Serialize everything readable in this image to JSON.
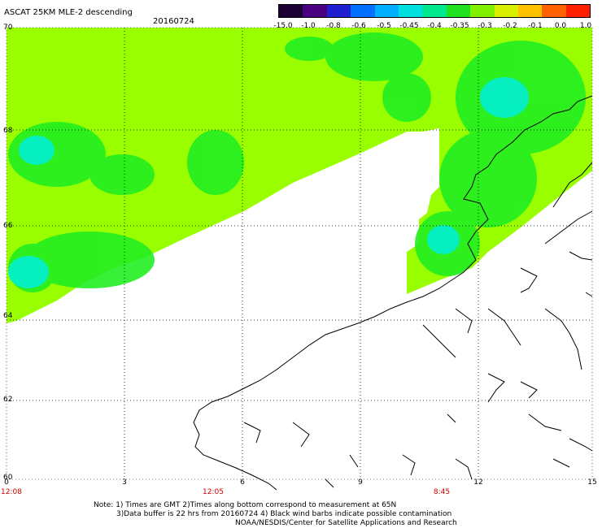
{
  "header": {
    "title": "ASCAT 25KM MLE-2 descending",
    "date": "20160724"
  },
  "colorbar": {
    "labels": [
      "-15.0",
      "-1.0",
      "-0.8",
      "-0.6",
      "-0.5",
      "-0.45",
      "-0.4",
      "-0.35",
      "-0.3",
      "-0.2",
      "-0.1",
      "0.0",
      "1.0"
    ],
    "colors": [
      "#1a0033",
      "#4b0082",
      "#2020d0",
      "#0070ff",
      "#00b0ff",
      "#00e0e0",
      "#00e890",
      "#20e020",
      "#80f000",
      "#d8f000",
      "#ffc000",
      "#ff6000",
      "#ff2000"
    ]
  },
  "axes": {
    "y_ticks": [
      "70",
      "68",
      "66",
      "64",
      "62",
      "60"
    ],
    "x_ticks": [
      "0",
      "3",
      "6",
      "9",
      "12",
      "15"
    ],
    "times": [
      "12:08",
      "12:05",
      "8:45"
    ]
  },
  "notes": [
    "Note: 1) Times are GMT 2)Times along bottom correspond to measurement at 65N",
    "3)Data buffer is 22 hrs from 20160724 4) Black wind barbs indicate possible contamination",
    "NOAA/NESDIS/Center for Satellite Applications and Research"
  ],
  "legend": {
    "swath_main_color": "#99ff00",
    "swath_secondary_color": "#22ee22",
    "swath_cyan_color": "#00eedd"
  }
}
